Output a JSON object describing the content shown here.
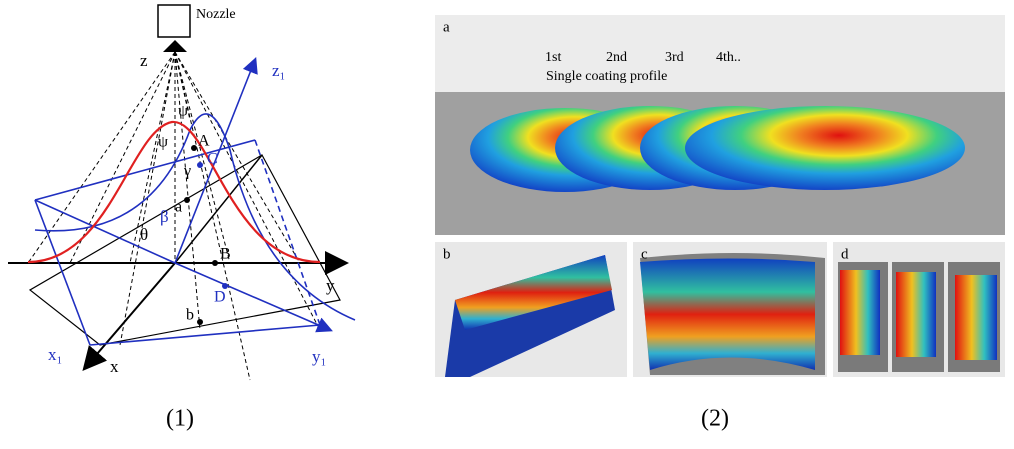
{
  "figure": {
    "left": {
      "nozzle": "Nozzle",
      "axes": {
        "z": "z",
        "z1": "z₁",
        "x": "x",
        "y": "y",
        "x1": "x₁",
        "y1": "y₁"
      },
      "angles": {
        "psi_top": "ψ",
        "psi_left": "ψ",
        "gamma": "γ",
        "beta": "β",
        "theta": "θ"
      },
      "points": {
        "A": "A",
        "C": "C",
        "a": "a",
        "B": "B",
        "D": "D",
        "b": "b"
      },
      "caption": "(1)"
    },
    "right": {
      "panels": {
        "a": "a",
        "b": "b",
        "c": "c",
        "d": "d"
      },
      "passes": [
        "1st",
        "2nd",
        "3rd",
        "4th.."
      ],
      "profile_label": "Single coating profile",
      "caption": "(2)"
    }
  }
}
